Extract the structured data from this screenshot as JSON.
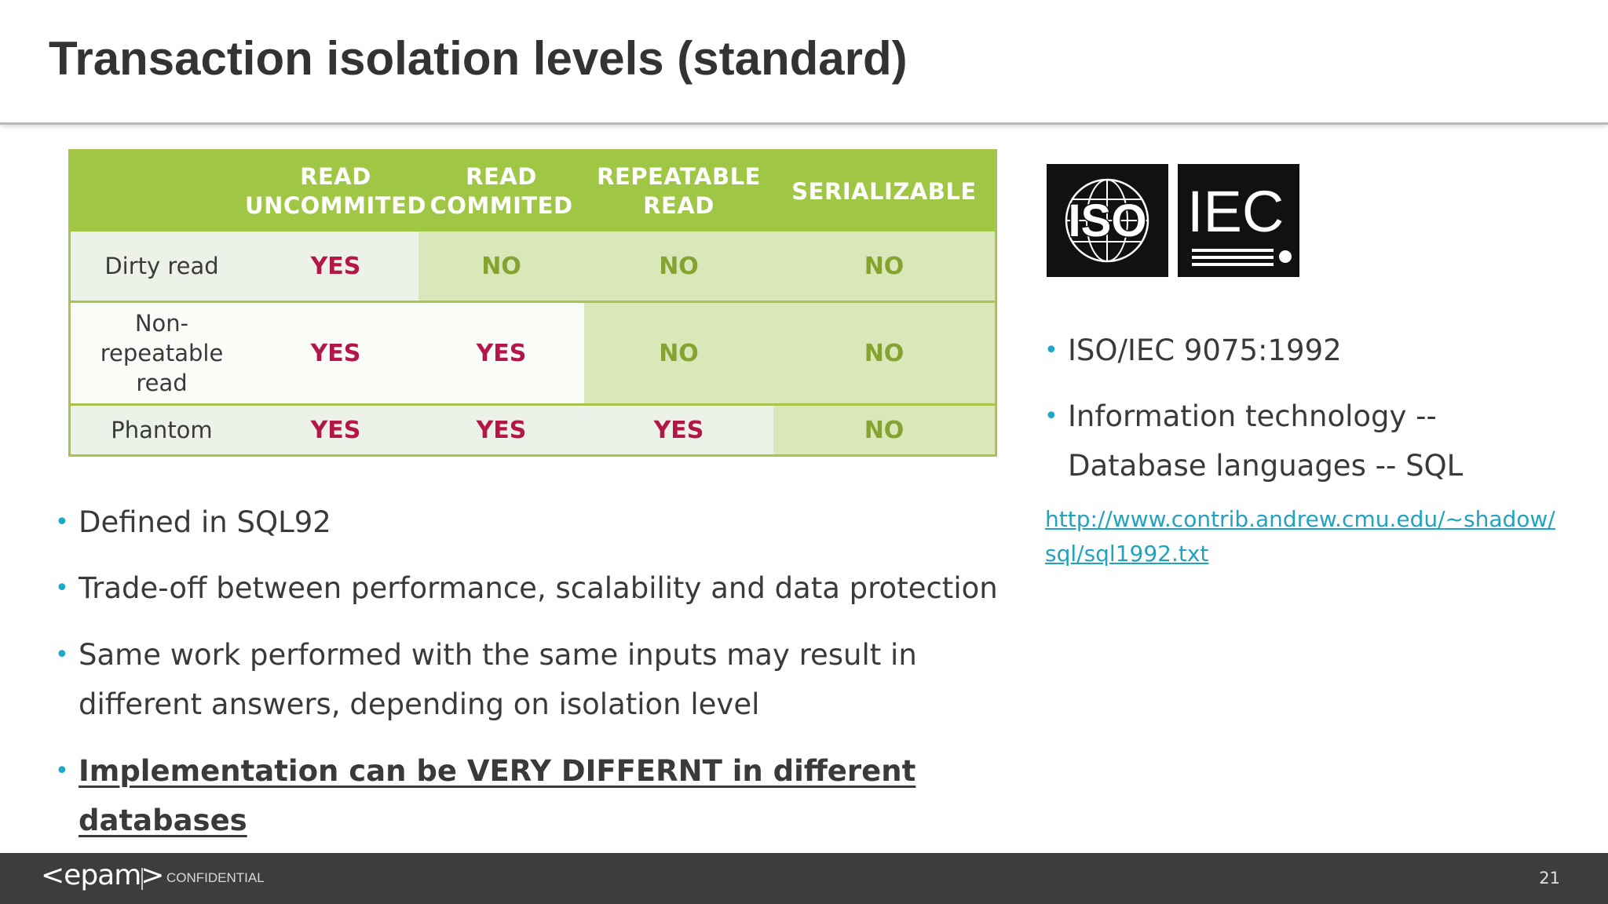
{
  "slide": {
    "title": "Transaction isolation levels (standard)",
    "page_number": "21"
  },
  "table": {
    "columns": [
      "",
      "READ\nUNCOMMITED",
      "READ\nCOMMITED",
      "REPEATABLE\nREAD",
      "SERIALIZABLE"
    ],
    "rows": [
      {
        "label": "Dirty read",
        "values": [
          "YES",
          "NO",
          "NO",
          "NO"
        ]
      },
      {
        "label": "Non-\nrepeatable\nread",
        "values": [
          "YES",
          "YES",
          "NO",
          "NO"
        ]
      },
      {
        "label": "Phantom",
        "values": [
          "YES",
          "YES",
          "YES",
          "NO"
        ]
      }
    ]
  },
  "logos": {
    "iso": "ISO",
    "iec": "IEC"
  },
  "right": {
    "bullets": [
      "ISO/IEC 9075:1992",
      "Information technology -- Database languages -- SQL"
    ],
    "link": "http://www.contrib.andrew.cmu.edu/~shadow/sql/sql1992.txt"
  },
  "left_bullets": [
    "Defined in SQL92",
    "Trade-off between performance, scalability and data protection",
    "Same work performed with the same inputs may result in different answers, depending on isolation level",
    "Implementation can be VERY DIFFERNT in different databases"
  ],
  "footer": {
    "brand": "<epam>",
    "label": "CONFIDENTIAL"
  },
  "colors": {
    "table_header": "#a0c645",
    "yes": "#b5164a",
    "no": "#86a331",
    "bullet": "#1fa9c9",
    "footer": "#3d3d3f"
  }
}
